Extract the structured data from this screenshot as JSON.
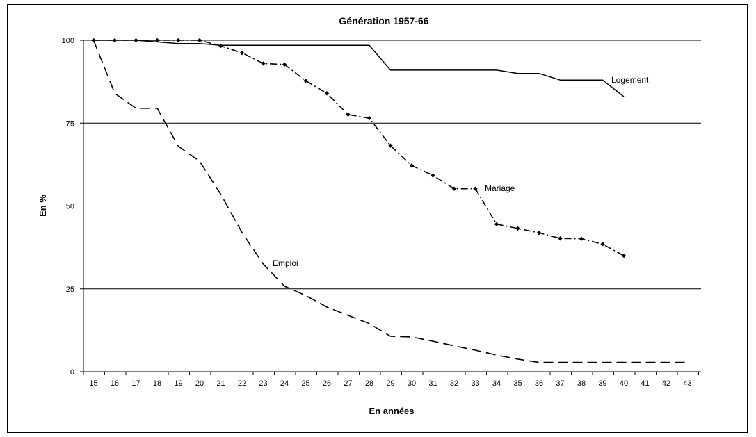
{
  "chart_data": {
    "type": "line",
    "title": "Génération 1957-66",
    "xlabel": "En années",
    "ylabel": "En %",
    "xlim": [
      15,
      43
    ],
    "ylim": [
      0,
      100
    ],
    "x_ticks": [
      "15",
      "16",
      "17",
      "18",
      "19",
      "20",
      "21",
      "22",
      "23",
      "24",
      "25",
      "26",
      "27",
      "28",
      "29",
      "30",
      "31",
      "32",
      "33",
      "34",
      "35",
      "36",
      "37",
      "38",
      "39",
      "40",
      "41",
      "42",
      "43"
    ],
    "y_ticks": [
      "0",
      "25",
      "50",
      "75",
      "100"
    ],
    "grid": "horizontal",
    "legend": "none",
    "series": [
      {
        "name": "Logement",
        "style": "solid",
        "markers": false,
        "x": [
          15,
          16,
          17,
          18,
          19,
          20,
          21,
          22,
          23,
          24,
          25,
          26,
          27,
          28,
          29,
          30,
          31,
          32,
          33,
          34,
          35,
          36,
          37,
          38,
          39,
          40
        ],
        "y": [
          100,
          100,
          100,
          99.5,
          99,
          99,
          98.5,
          98.5,
          98.5,
          98.5,
          98.5,
          98.5,
          98.5,
          98.5,
          91,
          91,
          91,
          91,
          91,
          91,
          90,
          90,
          88,
          88,
          88,
          83
        ]
      },
      {
        "name": "Mariage",
        "style": "dash-dot",
        "markers": true,
        "x": [
          15,
          16,
          17,
          18,
          19,
          20,
          21,
          22,
          23,
          24,
          25,
          26,
          27,
          28,
          29,
          30,
          31,
          32,
          33,
          34,
          35,
          36,
          37,
          38,
          39,
          40
        ],
        "y": [
          100,
          100,
          100,
          100,
          100,
          100,
          98.3,
          96.2,
          93,
          92.7,
          87.8,
          84,
          77.6,
          76.5,
          68.2,
          62.2,
          59.2,
          55.2,
          55.2,
          44.5,
          43.2,
          41.9,
          40.2,
          40.1,
          38.5,
          35
        ]
      },
      {
        "name": "Emploi",
        "style": "dashed",
        "markers": false,
        "x": [
          15,
          16,
          17,
          18,
          19,
          20,
          21,
          22,
          23,
          24,
          25,
          26,
          27,
          28,
          29,
          30,
          31,
          32,
          33,
          34,
          35,
          36,
          37,
          38,
          39,
          40,
          41,
          42,
          43
        ],
        "y": [
          100,
          84,
          79.5,
          79.5,
          68,
          63.5,
          53.5,
          42,
          32.5,
          25.8,
          23,
          19.5,
          17,
          14.5,
          10.7,
          10.5,
          9.2,
          7.8,
          6.5,
          5,
          3.8,
          2.8,
          2.8,
          2.8,
          2.8,
          2.8,
          2.8,
          2.8,
          2.8
        ]
      }
    ],
    "annotations": [
      {
        "text": "Logement",
        "series": "Logement"
      },
      {
        "text": "Mariage",
        "series": "Mariage"
      },
      {
        "text": "Emploi",
        "series": "Emploi"
      }
    ]
  }
}
